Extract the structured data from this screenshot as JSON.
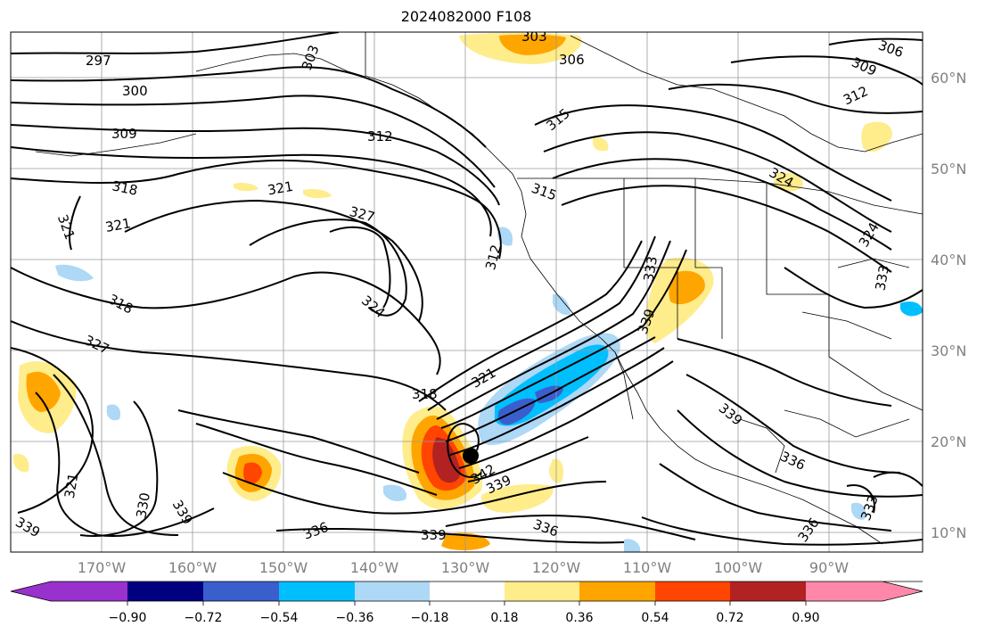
{
  "title": "2024082000 F108",
  "lon_labels": [
    "170°W",
    "160°W",
    "150°W",
    "140°W",
    "130°W",
    "120°W",
    "110°W",
    "100°W",
    "90°W"
  ],
  "lat_labels": [
    "60°N",
    "50°N",
    "40°N",
    "30°N",
    "20°N",
    "10°N"
  ],
  "colorbar": {
    "colors": [
      "#9932cc",
      "#000080",
      "#3a5fcd",
      "#00bfff",
      "#add8f6",
      "#ffffff",
      "#ffec8b",
      "#ffa500",
      "#ff4500",
      "#b22222",
      "#ff88aa"
    ],
    "ticks": [
      "−0.90",
      "−0.72",
      "−0.54",
      "−0.36",
      "−0.18",
      "0.18",
      "0.36",
      "0.54",
      "0.72",
      "0.90"
    ]
  },
  "contour_labels": [
    "297",
    "300",
    "303",
    "303",
    "306",
    "306",
    "309",
    "309",
    "312",
    "312",
    "312",
    "315",
    "315",
    "318",
    "318",
    "318",
    "321",
    "321",
    "321",
    "321",
    "321",
    "324",
    "324",
    "324",
    "327",
    "327",
    "330",
    "333",
    "333",
    "333",
    "336",
    "336",
    "336",
    "336",
    "339",
    "339",
    "339",
    "339",
    "339",
    "339",
    "342"
  ],
  "storm_marker": "black-dot"
}
